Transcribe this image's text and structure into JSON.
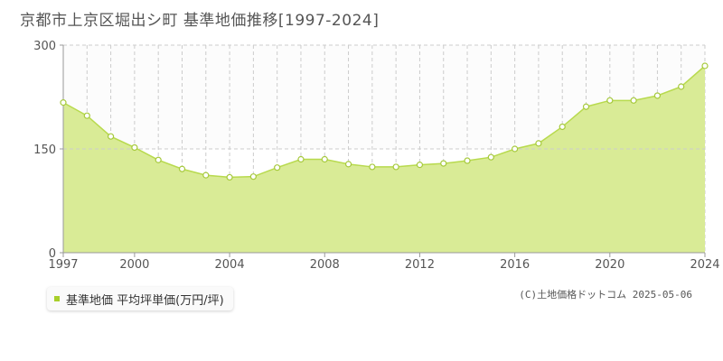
{
  "title": "京都市上京区堀出シ町 基準地価推移[1997-2024]",
  "legend_label": "基準地価 平均坪単価(万円/坪)",
  "credit": "(C)土地価格ドットコム 2025-05-06",
  "colors": {
    "fill": "#d9eb96",
    "line": "#b8da4e",
    "point_stroke": "#a6c93c",
    "swatch": "#a8cf2a",
    "grid": "#cccccc",
    "upper_band": "#fcfcfc"
  },
  "chart_data": {
    "type": "area",
    "title": "京都市上京区堀出シ町 基準地価推移[1997-2024]",
    "xlabel": "",
    "ylabel": "",
    "x": [
      1997,
      1998,
      1999,
      2000,
      2001,
      2002,
      2003,
      2004,
      2005,
      2006,
      2007,
      2008,
      2009,
      2010,
      2011,
      2012,
      2013,
      2014,
      2015,
      2016,
      2017,
      2018,
      2019,
      2020,
      2021,
      2022,
      2023,
      2024
    ],
    "series": [
      {
        "name": "基準地価 平均坪単価(万円/坪)",
        "values": [
          217,
          198,
          168,
          152,
          134,
          121,
          112,
          109,
          110,
          123,
          135,
          135,
          128,
          124,
          124,
          127,
          129,
          133,
          138,
          150,
          158,
          182,
          211,
          220,
          220,
          227,
          240,
          270
        ]
      }
    ],
    "ylim": [
      0,
      300
    ],
    "yticks": [
      0,
      150,
      300
    ],
    "xlim": [
      1997,
      2024
    ],
    "xticks": [
      1997,
      2000,
      2004,
      2008,
      2012,
      2016,
      2020,
      2024
    ],
    "grid": true,
    "legend_position": "bottom-left"
  }
}
